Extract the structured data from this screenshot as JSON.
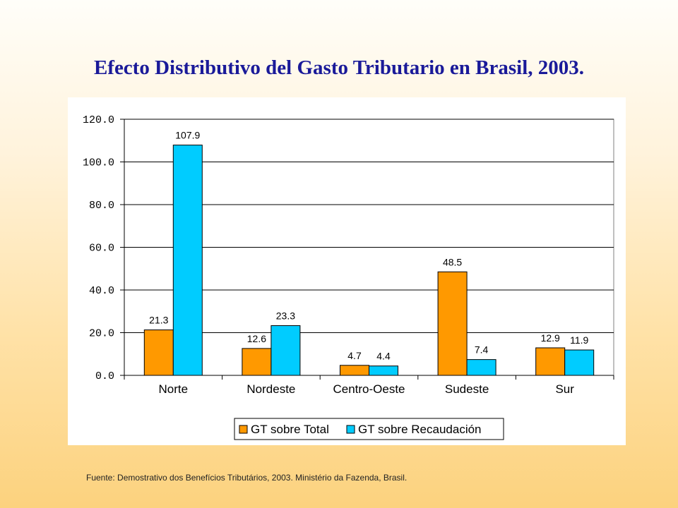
{
  "title": "Efecto Distributivo del Gasto Tributario en Brasil, 2003.",
  "source": "Fuente: Demostrativo dos Benefícios Tributários, 2003. Ministério da Fazenda, Brasil.",
  "chart_data": {
    "type": "bar",
    "categories": [
      "Norte",
      "Nordeste",
      "Centro-Oeste",
      "Sudeste",
      "Sur"
    ],
    "series": [
      {
        "name": "GT sobre Total",
        "color": "#ff9900",
        "values": [
          21.3,
          12.6,
          4.7,
          48.5,
          12.9
        ],
        "labels": [
          "21.3",
          "12.6",
          "4.7",
          "48.5",
          "12.9"
        ]
      },
      {
        "name": "GT sobre Recaudación",
        "color": "#00ccff",
        "values": [
          107.9,
          23.3,
          4.4,
          7.4,
          11.9
        ],
        "labels": [
          "107.9",
          "23.3",
          "4.4",
          "7.4",
          "11.9"
        ]
      }
    ],
    "ylim": [
      0,
      120
    ],
    "yticks": [
      0,
      20,
      40,
      60,
      80,
      100,
      120
    ],
    "ytick_labels": [
      "0.0",
      "20.0",
      "40.0",
      "60.0",
      "80.0",
      "100.0",
      "120.0"
    ],
    "grid": true,
    "legend": "bottom"
  }
}
